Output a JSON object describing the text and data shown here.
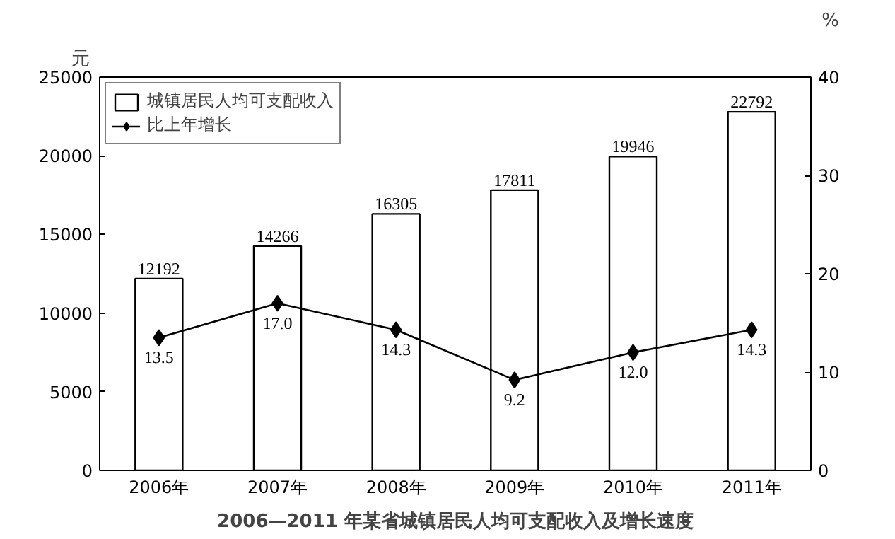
{
  "chart_data": {
    "type": "bar",
    "title": "2006—2011 年某省城镇居民人均可支配收入及增长速度",
    "ylabel": "元",
    "y2label": "%",
    "categories": [
      "2006年",
      "2007年",
      "2008年",
      "2009年",
      "2010年",
      "2011年"
    ],
    "series": [
      {
        "name": "城镇居民人均可支配收入",
        "color": "#ffffff",
        "values": [
          12192,
          14266,
          16305,
          17811,
          19946,
          22792
        ]
      },
      {
        "name": "比上年增长",
        "type": "line",
        "axis": "y2",
        "color": "#000000",
        "marker": "diamond",
        "values": [
          13.5,
          17.0,
          14.3,
          9.2,
          12.0,
          14.3
        ],
        "value_labels": [
          "13.5",
          "17.0",
          "14.3",
          "9.2",
          "12.0",
          "14.3"
        ]
      }
    ],
    "data_labels": true,
    "ylim": [
      0,
      25000
    ],
    "yticks": [
      0,
      5000,
      10000,
      15000,
      20000,
      25000
    ],
    "y2lim": [
      0,
      40
    ],
    "y2ticks": [
      0,
      10,
      20,
      30,
      40
    ],
    "grid": false,
    "legend": "top left"
  }
}
